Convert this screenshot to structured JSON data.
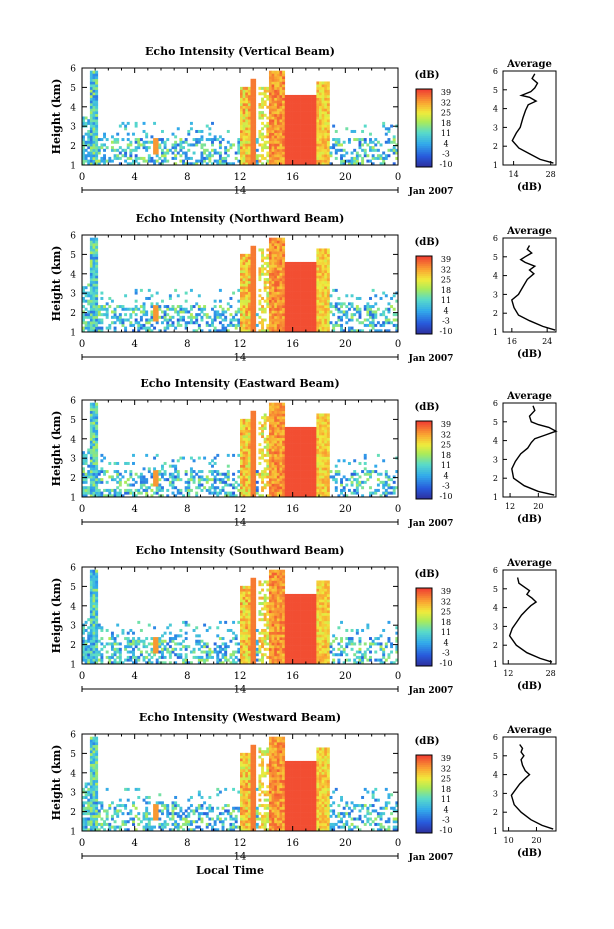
{
  "chart_data": [
    {
      "type": "heatmap",
      "title": "Echo Intensity (Vertical Beam)",
      "ylabel": "Height (km)",
      "xlabel": "",
      "date_label": "Jan 2007",
      "x_ticks": [
        "0",
        "4",
        "8",
        "12",
        "16",
        "20",
        "0"
      ],
      "day_label": "14",
      "y_ticks": [
        "1",
        "2",
        "3",
        "4",
        "5",
        "6"
      ],
      "xlim": [
        0,
        24
      ],
      "ylim": [
        1,
        6
      ],
      "colorbar": {
        "unit": "(dB)",
        "ticks": [
          "-10",
          "-3",
          "4",
          "11",
          "18",
          "25",
          "32",
          "39"
        ]
      },
      "profile": {
        "title": "Average",
        "xlabel": "(dB)",
        "x_ticks": [
          "14",
          "28"
        ],
        "xlim": [
          10,
          30
        ],
        "y_ticks": [
          "1",
          "2",
          "3",
          "4",
          "5",
          "6"
        ],
        "points": [
          [
            29,
            1.1
          ],
          [
            24,
            1.3
          ],
          [
            20,
            1.6
          ],
          [
            16,
            1.9
          ],
          [
            13.5,
            2.3
          ],
          [
            15,
            2.7
          ],
          [
            16.5,
            3.0
          ],
          [
            17.5,
            3.5
          ],
          [
            18.5,
            3.9
          ],
          [
            19.5,
            4.2
          ],
          [
            22.5,
            4.4
          ],
          [
            20,
            4.6
          ],
          [
            17,
            4.7
          ],
          [
            20.5,
            4.9
          ],
          [
            22,
            5.1
          ],
          [
            23,
            5.35
          ],
          [
            21,
            5.6
          ],
          [
            22,
            5.85
          ]
        ]
      }
    },
    {
      "type": "heatmap",
      "title": "Echo Intensity (Northward Beam)",
      "ylabel": "Height (km)",
      "xlabel": "",
      "date_label": "Jan 2007",
      "x_ticks": [
        "0",
        "4",
        "8",
        "12",
        "16",
        "20",
        "0"
      ],
      "day_label": "14",
      "y_ticks": [
        "1",
        "2",
        "3",
        "4",
        "5",
        "6"
      ],
      "xlim": [
        0,
        24
      ],
      "ylim": [
        1,
        6
      ],
      "colorbar": {
        "unit": "(dB)",
        "ticks": [
          "-10",
          "-3",
          "4",
          "11",
          "18",
          "25",
          "32",
          "39"
        ]
      },
      "profile": {
        "title": "Average",
        "xlabel": "(dB)",
        "x_ticks": [
          "16",
          "24"
        ],
        "xlim": [
          14,
          26
        ],
        "y_ticks": [
          "1",
          "2",
          "3",
          "4",
          "5",
          "6"
        ],
        "points": [
          [
            25.8,
            1.1
          ],
          [
            23,
            1.3
          ],
          [
            20,
            1.6
          ],
          [
            17.5,
            1.9
          ],
          [
            16.5,
            2.3
          ],
          [
            16,
            2.7
          ],
          [
            17.5,
            3.0
          ],
          [
            18.5,
            3.4
          ],
          [
            19.5,
            3.8
          ],
          [
            21,
            4.1
          ],
          [
            20,
            4.3
          ],
          [
            21.2,
            4.5
          ],
          [
            19,
            4.7
          ],
          [
            18,
            4.85
          ],
          [
            19,
            5.0
          ],
          [
            20.5,
            5.2
          ],
          [
            19.5,
            5.4
          ],
          [
            20,
            5.6
          ]
        ]
      }
    },
    {
      "type": "heatmap",
      "title": "Echo Intensity (Eastward Beam)",
      "ylabel": "Height (km)",
      "xlabel": "",
      "date_label": "Jan 2007",
      "x_ticks": [
        "0",
        "4",
        "8",
        "12",
        "16",
        "20",
        "0"
      ],
      "day_label": "14",
      "y_ticks": [
        "1",
        "2",
        "3",
        "4",
        "5",
        "6"
      ],
      "xlim": [
        0,
        24
      ],
      "ylim": [
        1,
        6
      ],
      "colorbar": {
        "unit": "(dB)",
        "ticks": [
          "-10",
          "-3",
          "4",
          "11",
          "18",
          "25",
          "32",
          "39"
        ]
      },
      "profile": {
        "title": "Average",
        "xlabel": "(dB)",
        "x_ticks": [
          "12",
          "20"
        ],
        "xlim": [
          10,
          25
        ],
        "y_ticks": [
          "1",
          "2",
          "3",
          "4",
          "5",
          "6"
        ],
        "points": [
          [
            24.5,
            1.1
          ],
          [
            20,
            1.3
          ],
          [
            16,
            1.6
          ],
          [
            13,
            2.0
          ],
          [
            12.5,
            2.5
          ],
          [
            13.5,
            2.9
          ],
          [
            15,
            3.3
          ],
          [
            17,
            3.6
          ],
          [
            18,
            3.9
          ],
          [
            19,
            4.1
          ],
          [
            22,
            4.3
          ],
          [
            25,
            4.5
          ],
          [
            23,
            4.7
          ],
          [
            20,
            4.85
          ],
          [
            18,
            5.0
          ],
          [
            17.5,
            5.3
          ],
          [
            19,
            5.6
          ],
          [
            18.5,
            5.85
          ]
        ]
      }
    },
    {
      "type": "heatmap",
      "title": "Echo Intensity (Southward Beam)",
      "ylabel": "Height (km)",
      "xlabel": "",
      "date_label": "Jan 2007",
      "x_ticks": [
        "0",
        "4",
        "8",
        "12",
        "16",
        "20",
        "0"
      ],
      "day_label": "14",
      "y_ticks": [
        "1",
        "2",
        "3",
        "4",
        "5",
        "6"
      ],
      "xlim": [
        0,
        24
      ],
      "ylim": [
        1,
        6
      ],
      "colorbar": {
        "unit": "(dB)",
        "ticks": [
          "-10",
          "-3",
          "4",
          "11",
          "18",
          "25",
          "32",
          "39"
        ]
      },
      "profile": {
        "title": "Average",
        "xlabel": "(dB)",
        "x_ticks": [
          "12",
          "28"
        ],
        "xlim": [
          10,
          30
        ],
        "y_ticks": [
          "1",
          "2",
          "3",
          "4",
          "5",
          "6"
        ],
        "points": [
          [
            28.5,
            1.1
          ],
          [
            24,
            1.3
          ],
          [
            19,
            1.6
          ],
          [
            15,
            2.0
          ],
          [
            12.5,
            2.5
          ],
          [
            13.5,
            2.9
          ],
          [
            15,
            3.2
          ],
          [
            17,
            3.6
          ],
          [
            19,
            3.9
          ],
          [
            20.5,
            4.1
          ],
          [
            22.5,
            4.3
          ],
          [
            21,
            4.5
          ],
          [
            19,
            4.7
          ],
          [
            20,
            4.9
          ],
          [
            18,
            5.1
          ],
          [
            16,
            5.3
          ],
          [
            15.5,
            5.6
          ]
        ]
      }
    },
    {
      "type": "heatmap",
      "title": "Echo Intensity (Westward Beam)",
      "ylabel": "Height (km)",
      "xlabel": "Local Time",
      "date_label": "Jan 2007",
      "x_ticks": [
        "0",
        "4",
        "8",
        "12",
        "16",
        "20",
        "0"
      ],
      "day_label": "14",
      "y_ticks": [
        "1",
        "2",
        "3",
        "4",
        "5",
        "6"
      ],
      "xlim": [
        0,
        24
      ],
      "ylim": [
        1,
        6
      ],
      "colorbar": {
        "unit": "(dB)",
        "ticks": [
          "-10",
          "-3",
          "4",
          "11",
          "18",
          "25",
          "32",
          "39"
        ]
      },
      "profile": {
        "title": "Average",
        "xlabel": "(dB)",
        "x_ticks": [
          "10",
          "20"
        ],
        "xlim": [
          8,
          27
        ],
        "y_ticks": [
          "1",
          "2",
          "3",
          "4",
          "5",
          "6"
        ],
        "points": [
          [
            26,
            1.1
          ],
          [
            22,
            1.3
          ],
          [
            18,
            1.6
          ],
          [
            14.5,
            2.0
          ],
          [
            12,
            2.4
          ],
          [
            11,
            2.9
          ],
          [
            12.5,
            3.2
          ],
          [
            14,
            3.5
          ],
          [
            16,
            3.8
          ],
          [
            17.5,
            4.0
          ],
          [
            16,
            4.2
          ],
          [
            15,
            4.5
          ],
          [
            14.5,
            4.8
          ],
          [
            15.5,
            5.0
          ],
          [
            14.5,
            5.2
          ],
          [
            15,
            5.4
          ],
          [
            14,
            5.6
          ]
        ]
      }
    }
  ]
}
